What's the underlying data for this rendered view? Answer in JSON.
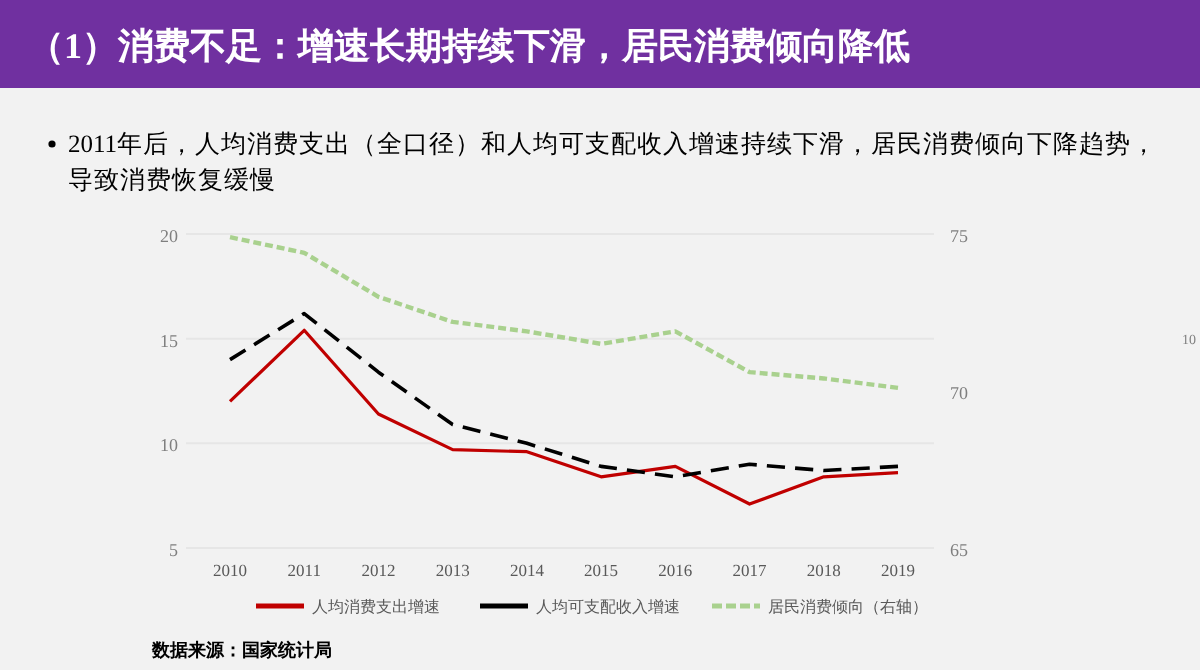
{
  "chart_data": {
    "type": "line",
    "title": "（1）消费不足：增速长期持续下滑，居民消费倾向降低",
    "subtitle": "2011年后，人均消费支出（全口径）和人均可支配收入增速持续下滑，居民消费倾向下降趋势，导致消费恢复缓慢",
    "annotations": [
      "数据来源：国家统计局",
      "10"
    ],
    "categories": [
      "2010",
      "2011",
      "2012",
      "2013",
      "2014",
      "2015",
      "2016",
      "2017",
      "2018",
      "2019"
    ],
    "series": [
      {
        "name": "人均消费支出增速",
        "color": "#c00000",
        "line_style": "solid",
        "values": [
          12.0,
          15.4,
          11.4,
          9.7,
          9.6,
          8.4,
          8.9,
          7.1,
          8.4,
          8.6
        ]
      },
      {
        "name": "人均可支配收入增速",
        "color": "#000000",
        "line_style": "dashed",
        "values": [
          14.0,
          16.2,
          13.4,
          10.9,
          10.0,
          8.9,
          8.4,
          9.0,
          8.7,
          8.9
        ]
      },
      {
        "name": "居民消费倾向（右轴）",
        "color": "#a9d18e",
        "line_style": "dotted",
        "axis": "y2",
        "values": [
          74.9,
          74.4,
          73.0,
          72.2,
          71.9,
          71.5,
          71.9,
          70.6,
          70.4,
          70.1
        ]
      }
    ],
    "ylim": [
      5,
      20
    ],
    "yticks": [
      5,
      10,
      15,
      20
    ],
    "y2lim": [
      65,
      75
    ],
    "y2ticks": [
      65,
      70,
      75
    ],
    "grid": "y",
    "legend": "bottom"
  }
}
